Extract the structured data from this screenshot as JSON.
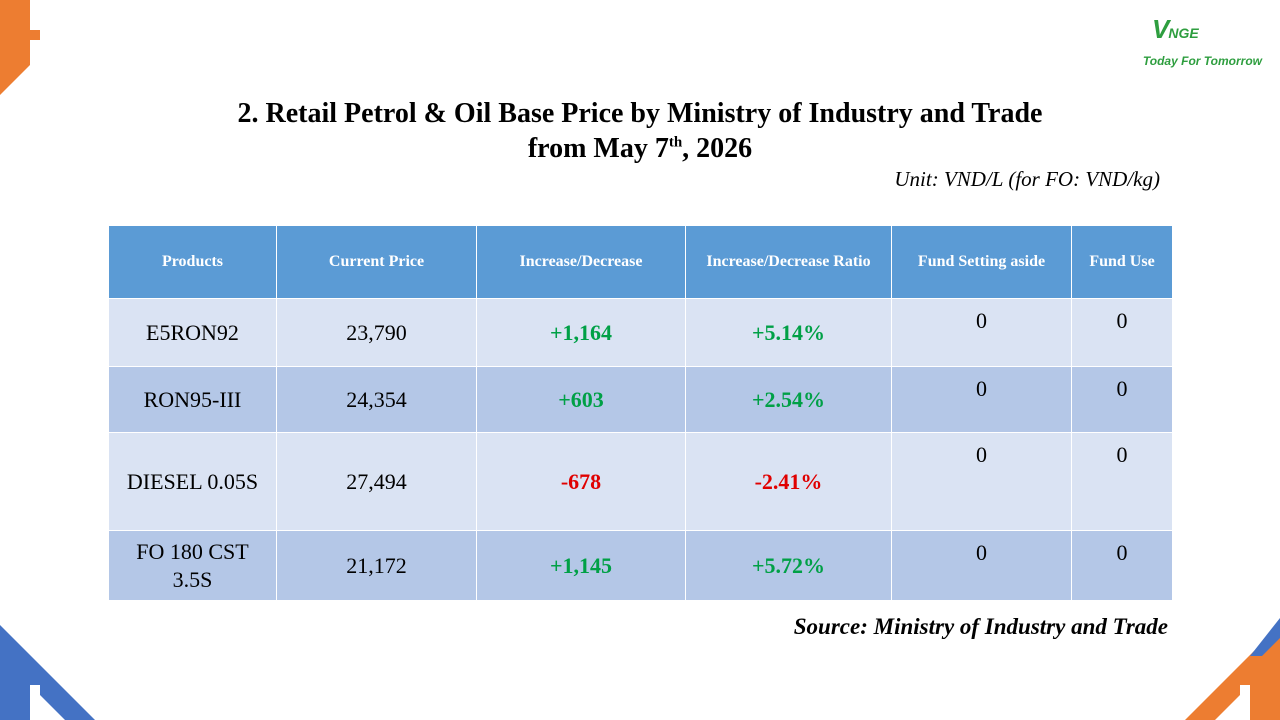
{
  "logo": {
    "mark": "V",
    "mark_rest": "NGE",
    "slogan": "Today For Tomorrow"
  },
  "title": {
    "line1": "2. Retail Petrol & Oil Base Price by Ministry of Industry and Trade",
    "line2_pre": "from May 7",
    "line2_sup": "th",
    "line2_post": ", 2026"
  },
  "unit": "Unit: VND/L (for FO: VND/kg)",
  "table": {
    "headers": [
      "Products",
      "Current Price",
      "Increase/Decrease",
      "Increase/Decrease Ratio",
      "Fund Setting aside",
      "Fund Use"
    ],
    "rows": [
      {
        "product": "E5RON92",
        "price": "23,790",
        "change": "+1,164",
        "ratio": "+5.14%",
        "fund_aside": "0",
        "fund_use": "0"
      },
      {
        "product": "RON95-III",
        "price": "24,354",
        "change": "+603",
        "ratio": "+2.54%",
        "fund_aside": "0",
        "fund_use": "0"
      },
      {
        "product": "DIESEL 0.05S",
        "price": "27,494",
        "change": "-678",
        "ratio": "-2.41%",
        "fund_aside": "0",
        "fund_use": "0"
      },
      {
        "product": "FO 180 CST 3.5S",
        "price": "21,172",
        "change": "+1,145",
        "ratio": "+5.72%",
        "fund_aside": "0",
        "fund_use": "0"
      }
    ]
  },
  "source": "Source: Ministry of Industry and Trade",
  "colors": {
    "orange": "#ed7d31",
    "blue": "#4472c4",
    "header_blue": "#5b9bd5",
    "positive": "#00a046",
    "negative": "#e00000"
  },
  "icons": [
    "corner-decoration-icon",
    "vnge-logo-icon"
  ]
}
